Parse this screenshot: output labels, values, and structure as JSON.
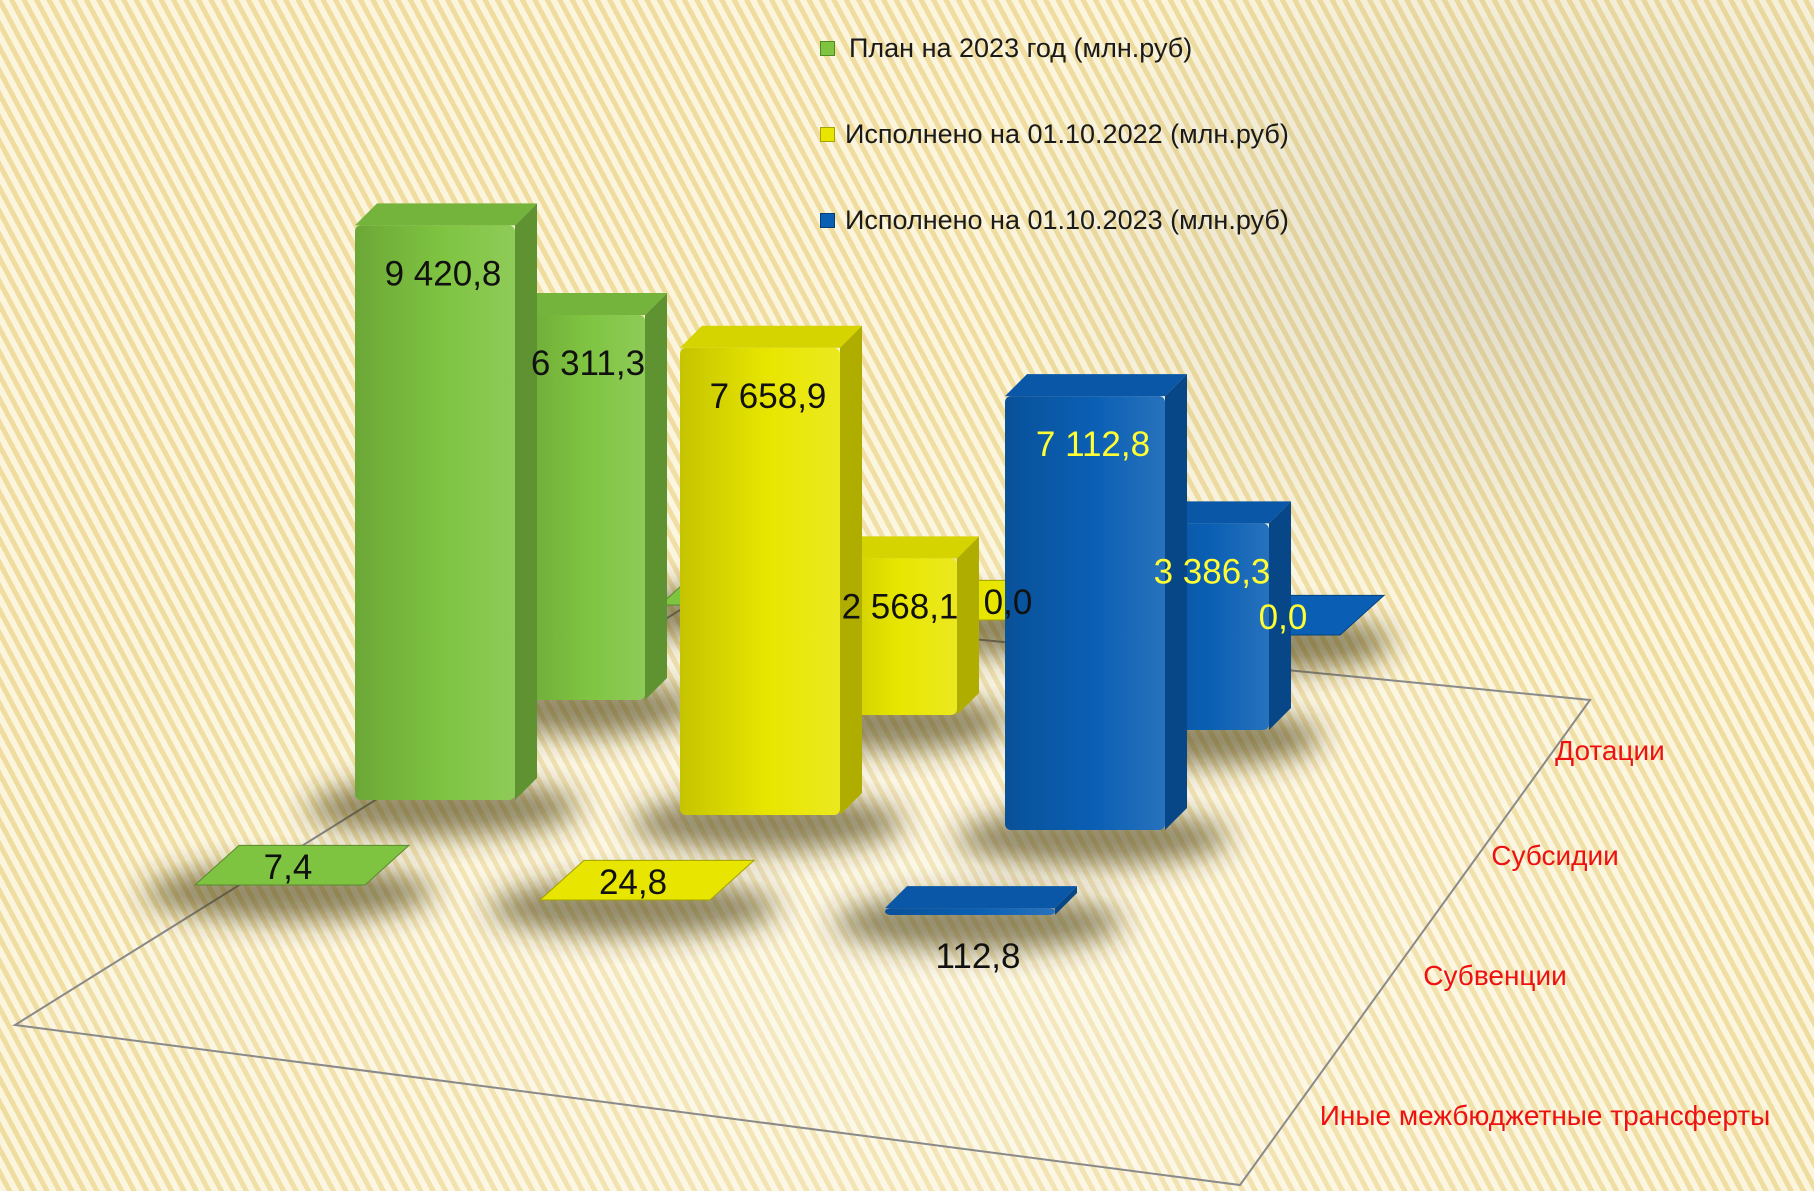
{
  "chart_data": {
    "type": "bar",
    "title": "",
    "categories": [
      "Дотации",
      "Субсидии",
      "Субвенции",
      "Иные межбюджетные трансферты"
    ],
    "series": [
      {
        "name": "План на 2023 год  (млн.руб)",
        "color": "#7fc441",
        "values": [
          0.0,
          6311.3,
          9420.8,
          7.4
        ],
        "labels": [
          "",
          "6 311,3",
          "9 420,8",
          "7,4"
        ]
      },
      {
        "name": "Исполнено на 01.10.2022 (млн.руб)",
        "color": "#e8e600",
        "values": [
          0.0,
          2568.1,
          7658.9,
          24.8
        ],
        "labels": [
          "0,0",
          "2 568,1",
          "7 658,9",
          "24,8"
        ]
      },
      {
        "name": "Исполнено на 01.10.2023 (млн.руб)",
        "color": "#0a5fb4",
        "values": [
          0.0,
          3386.3,
          7112.8,
          112.8
        ],
        "labels": [
          "0,0",
          "3 386,3",
          "7 112,8",
          "112,8"
        ]
      }
    ],
    "legend_position": "top-right",
    "grid": false
  },
  "legend": {
    "items": [
      {
        "label": "План на 2023 год  (млн.руб)",
        "color": "#7fc441"
      },
      {
        "label": "Исполнено на 01.10.2022 (млн.руб)",
        "color": "#e8e600"
      },
      {
        "label": "Исполнено на 01.10.2023 (млн.руб)",
        "color": "#0a5fb4"
      }
    ]
  }
}
